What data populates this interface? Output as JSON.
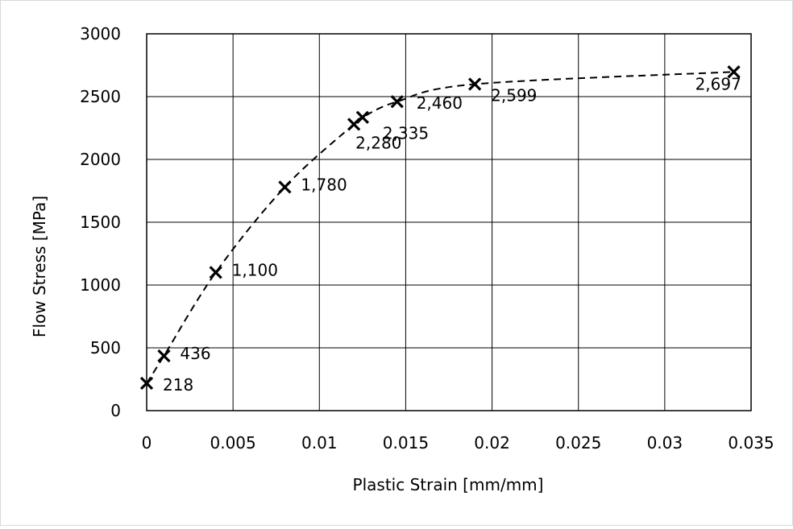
{
  "chart_data": {
    "type": "scatter",
    "title": "",
    "xlabel": "Plastic Strain [mm/mm]",
    "ylabel": "Flow Stress [MPa]",
    "xlim": [
      0,
      0.035
    ],
    "ylim": [
      0,
      3000
    ],
    "x_ticks": [
      "0",
      "0.005",
      "0.01",
      "0.015",
      "0.02",
      "0.025",
      "0.03",
      "0.035"
    ],
    "y_ticks": [
      "0",
      "500",
      "1000",
      "1500",
      "2000",
      "2500",
      "3000"
    ],
    "grid": true,
    "legend": "none",
    "marker": "x",
    "trendline": "dashed",
    "series": [
      {
        "points": [
          {
            "x": 0,
            "y": 218,
            "label": "218"
          },
          {
            "x": 0.001,
            "y": 436,
            "label": "436"
          },
          {
            "x": 0.004,
            "y": 1100,
            "label": "1,100"
          },
          {
            "x": 0.008,
            "y": 1780,
            "label": "1,780"
          },
          {
            "x": 0.012,
            "y": 2280,
            "label": "2,280"
          },
          {
            "x": 0.0125,
            "y": 2335,
            "label": "2,335"
          },
          {
            "x": 0.0145,
            "y": 2460,
            "label": "2,460"
          },
          {
            "x": 0.019,
            "y": 2599,
            "label": "2,599"
          },
          {
            "x": 0.034,
            "y": 2697,
            "label": "2,697"
          }
        ]
      }
    ],
    "colors": {
      "marker": "#000000",
      "line": "#000000",
      "grid": "#000000"
    }
  }
}
